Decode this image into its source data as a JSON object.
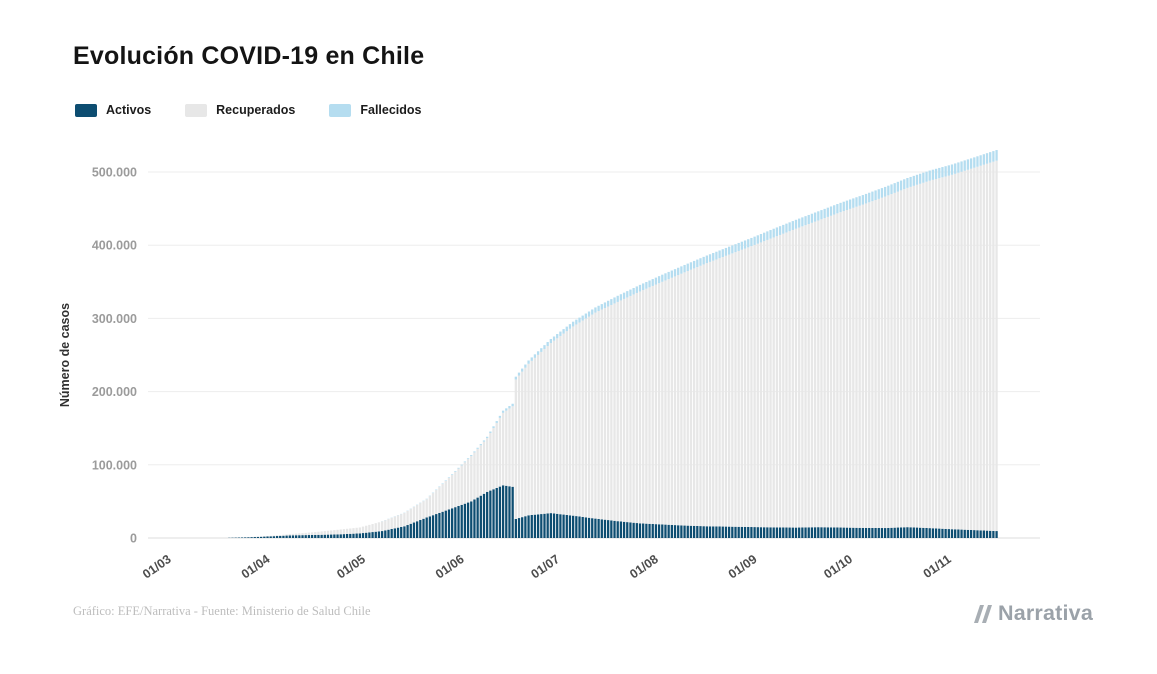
{
  "title": "Evolución COVID-19 en Chile",
  "footer": {
    "credit": "Gráfico: EFE/Narrativa - Fuente: Ministerio de Salud Chile"
  },
  "logo": {
    "text": "Narrativa"
  },
  "chart_data": {
    "type": "area",
    "stacked": true,
    "title": "Evolución COVID-19 en Chile",
    "xlabel": "",
    "ylabel": "Número de casos",
    "ylim": [
      0,
      500000
    ],
    "grid": "horizontal",
    "legend_position": "top-left",
    "x_ticks": [
      "01/03",
      "01/04",
      "01/05",
      "01/06",
      "01/07",
      "01/08",
      "01/09",
      "01/10",
      "01/11"
    ],
    "y_ticks": [
      0,
      100000,
      200000,
      300000,
      400000,
      500000
    ],
    "y_tick_labels": [
      "0",
      "100.000",
      "200.000",
      "300.000",
      "400.000",
      "500.000"
    ],
    "x": [
      "01/03",
      "10/03",
      "18/03",
      "25/03",
      "01/04",
      "08/04",
      "15/04",
      "22/04",
      "29/04",
      "06/05",
      "13/05",
      "20/05",
      "27/05",
      "03/06",
      "08/06",
      "13/06",
      "16/06",
      "17/06",
      "21/06",
      "28/06",
      "05/07",
      "12/07",
      "19/07",
      "26/07",
      "02/08",
      "09/08",
      "16/08",
      "23/08",
      "30/08",
      "06/09",
      "13/09",
      "20/09",
      "27/09",
      "04/10",
      "11/10",
      "18/10",
      "25/10",
      "01/11",
      "08/11",
      "15/11"
    ],
    "series": [
      {
        "name": "Activos",
        "color": "#0d4d71",
        "values": [
          0,
          15,
          200,
          950,
          2300,
          3700,
          4200,
          4900,
          6300,
          9500,
          16000,
          28000,
          39000,
          50000,
          63000,
          72000,
          70000,
          26000,
          31000,
          34000,
          30500,
          26500,
          23000,
          20000,
          18500,
          17000,
          16000,
          15500,
          15000,
          14500,
          14200,
          14800,
          14300,
          13800,
          13600,
          14800,
          13500,
          12000,
          10800,
          9500
        ]
      },
      {
        "name": "Recuperados",
        "color": "#e7e7e7",
        "values": [
          0,
          0,
          10,
          150,
          700,
          1900,
          3900,
          6300,
          8100,
          13100,
          18200,
          25100,
          43000,
          62000,
          73500,
          99000,
          110000,
          190600,
          207000,
          232300,
          258500,
          281500,
          299500,
          316800,
          331500,
          345900,
          359500,
          371700,
          383700,
          396100,
          408300,
          419000,
          430800,
          441700,
          452800,
          463500,
          474600,
          484200,
          495000,
          506000
        ]
      },
      {
        "name": "Fallecidos",
        "color": "#b5ddf0",
        "values": [
          0,
          0,
          1,
          5,
          20,
          60,
          105,
          160,
          215,
          280,
          390,
          560,
          840,
          1300,
          1800,
          3000,
          3400,
          3800,
          4500,
          5600,
          6500,
          7000,
          8400,
          9000,
          9700,
          10100,
          10400,
          10800,
          11200,
          11900,
          12200,
          12500,
          12800,
          13000,
          13200,
          13500,
          13900,
          14100,
          14200,
          14500
        ]
      }
    ]
  }
}
